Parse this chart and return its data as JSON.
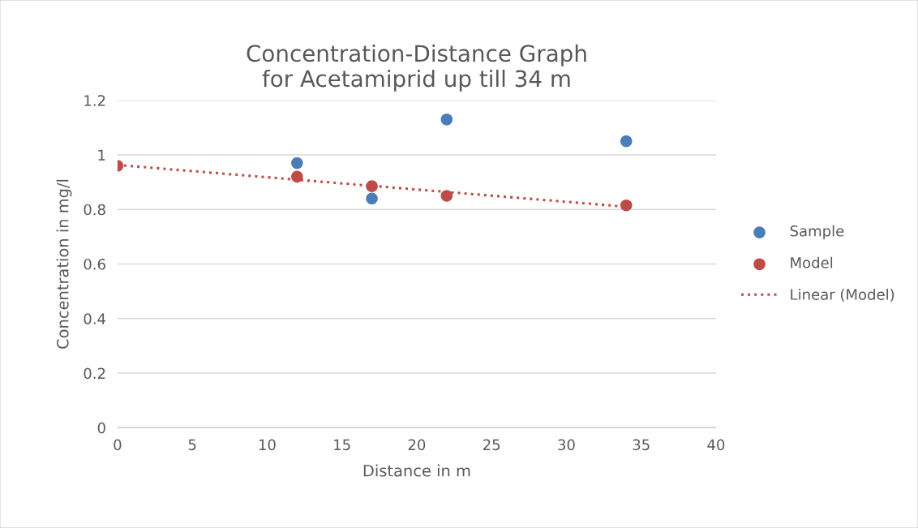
{
  "chart_data": {
    "type": "scatter",
    "title": "Concentration-Distance Graph\nfor Acetamiprid up till 34 m",
    "xlabel": "Distance in m",
    "ylabel": "Concentration in mg/l",
    "x": [
      0,
      12,
      17,
      22,
      34
    ],
    "series": [
      {
        "name": "Sample",
        "color": "#4a7ebb",
        "marker": "circle",
        "values": [
          null,
          0.97,
          0.84,
          1.13,
          1.05
        ]
      },
      {
        "name": "Model",
        "color": "#be4b48",
        "marker": "circle",
        "values": [
          0.96,
          0.92,
          0.885,
          0.85,
          0.815
        ]
      },
      {
        "name": "Linear (Model)",
        "type": "line",
        "marker": "none",
        "line_style": "dotted",
        "color": "#be4b48",
        "x": [
          0,
          34
        ],
        "values": [
          0.963,
          0.81
        ]
      }
    ],
    "xlim": [
      0,
      40
    ],
    "xticks": [
      0,
      5,
      10,
      15,
      20,
      25,
      30,
      35,
      40
    ],
    "ylim": [
      0,
      1.2
    ],
    "yticks": [
      0,
      0.2,
      0.4,
      0.6,
      0.8,
      1,
      1.2
    ],
    "grid": "y",
    "legend": "right"
  }
}
